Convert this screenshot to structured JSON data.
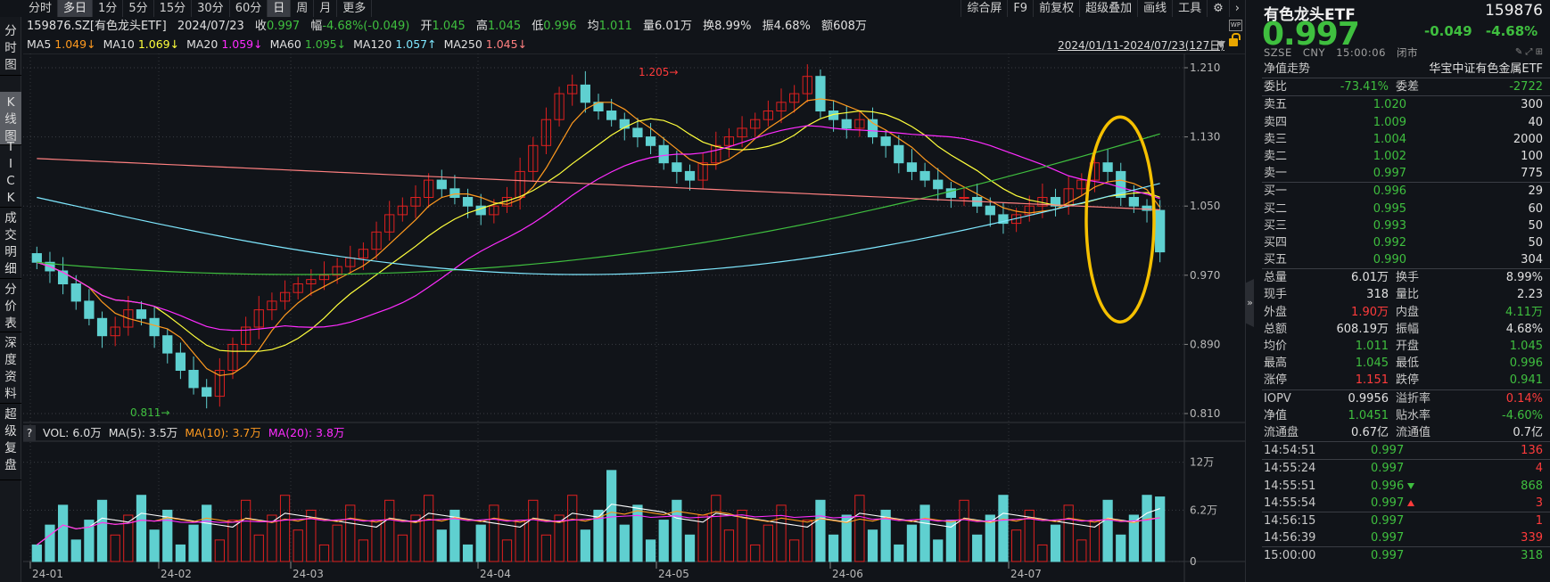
{
  "toolbar": {
    "period_tabs": [
      "分时",
      "多日",
      "1分",
      "5分",
      "15分",
      "30分",
      "60分",
      "日",
      "周",
      "月",
      "更多"
    ],
    "active_tabs": [
      1,
      7
    ],
    "right_tools": [
      "综合屏",
      "F9",
      "前复权",
      "超级叠加",
      "画线",
      "工具",
      "⚙",
      "›"
    ]
  },
  "left_tabs": [
    {
      "label": "分时图",
      "active": false
    },
    {
      "label": "K线图",
      "active": true
    },
    {
      "label": "TICK",
      "active": false
    },
    {
      "label": "成交明细",
      "active": false
    },
    {
      "label": "分价表",
      "active": false
    },
    {
      "label": "深度资料",
      "active": false
    },
    {
      "label": "超级复盘",
      "active": false
    }
  ],
  "info": {
    "symbol": "159876.SZ[有色龙头ETF]",
    "date": "2024/07/23",
    "close_label": "收",
    "close": "0.997",
    "chg_label": "幅",
    "chg": "-4.68%(-0.049)",
    "open_label": "开",
    "open": "1.045",
    "high_label": "高",
    "high": "1.045",
    "low_label": "低",
    "low": "0.996",
    "avg_label": "均",
    "avg": "1.011",
    "vol_label": "量",
    "vol": "6.01万",
    "turn_label": "换",
    "turn": "8.99%",
    "amp_label": "振",
    "amp": "4.68%",
    "amt_label": "额",
    "amt": "608万"
  },
  "ma": [
    {
      "name": "MA5",
      "value": "1.049↓",
      "color": "#ff9a1f"
    },
    {
      "name": "MA10",
      "value": "1.069↓",
      "color": "#ffff3c"
    },
    {
      "name": "MA20",
      "value": "1.059↓",
      "color": "#ff2cff"
    },
    {
      "name": "MA60",
      "value": "1.095↓",
      "color": "#3fbf3f"
    },
    {
      "name": "MA120",
      "value": "1.057↑",
      "color": "#7fe8ff"
    },
    {
      "name": "MA250",
      "value": "1.045↓",
      "color": "#ff8080"
    }
  ],
  "range_text": "2024/01/11-2024/07/23(127日)",
  "price_axis": [
    "1.210",
    "1.130",
    "1.050",
    "0.970",
    "0.890",
    "0.810"
  ],
  "annotations": {
    "high": "1.205",
    "low": "0.811"
  },
  "volume": {
    "help": "?",
    "vol": "VOL: 6.0万",
    "ma5": "MA(5): 3.5万",
    "ma10": "MA(10): 3.7万",
    "ma20": "MA(20): 3.8万",
    "axis": [
      "12万",
      "6.2万",
      "0"
    ]
  },
  "x_axis": [
    "24-01",
    "24-02",
    "24-03",
    "24-04",
    "24-05",
    "24-06",
    "24-07"
  ],
  "chart_data": {
    "type": "candlestick",
    "title": "159876.SZ 有色龙头ETF 日K",
    "ylim": [
      0.81,
      1.21
    ],
    "x_ticks": [
      "24-01",
      "24-02",
      "24-03",
      "24-04",
      "24-05",
      "24-06",
      "24-07"
    ],
    "close_series": [
      0.985,
      0.975,
      0.96,
      0.94,
      0.92,
      0.9,
      0.91,
      0.93,
      0.92,
      0.9,
      0.88,
      0.86,
      0.84,
      0.83,
      0.86,
      0.89,
      0.91,
      0.93,
      0.94,
      0.95,
      0.96,
      0.965,
      0.97,
      0.98,
      0.99,
      1.0,
      1.02,
      1.04,
      1.05,
      1.06,
      1.08,
      1.07,
      1.06,
      1.05,
      1.04,
      1.05,
      1.06,
      1.09,
      1.12,
      1.15,
      1.18,
      1.19,
      1.17,
      1.16,
      1.15,
      1.14,
      1.13,
      1.12,
      1.1,
      1.09,
      1.08,
      1.1,
      1.12,
      1.13,
      1.14,
      1.15,
      1.16,
      1.17,
      1.18,
      1.2,
      1.16,
      1.15,
      1.14,
      1.15,
      1.13,
      1.12,
      1.1,
      1.09,
      1.08,
      1.07,
      1.06,
      1.06,
      1.05,
      1.04,
      1.03,
      1.04,
      1.05,
      1.06,
      1.05,
      1.07,
      1.08,
      1.1,
      1.09,
      1.06,
      1.05,
      1.045,
      0.997
    ]
  },
  "right_panel": {
    "name": "有色龙头ETF",
    "code": "159876",
    "price": "0.997",
    "change": "-0.049",
    "change_pct": "-4.68%",
    "meta": [
      "SZSE",
      "CNY",
      "15:00:06",
      "闭市"
    ],
    "nav_trend": "净值走势",
    "index_name": "华宝中证有色金属ETF",
    "weibi": {
      "l1": "委比",
      "v1": "-73.41%",
      "l2": "委差",
      "v2": "-2722"
    },
    "asks": [
      {
        "label": "卖五",
        "price": "1.020",
        "vol": "300"
      },
      {
        "label": "卖四",
        "price": "1.009",
        "vol": "40"
      },
      {
        "label": "卖三",
        "price": "1.004",
        "vol": "2000"
      },
      {
        "label": "卖二",
        "price": "1.002",
        "vol": "100"
      },
      {
        "label": "卖一",
        "price": "0.997",
        "vol": "775"
      }
    ],
    "bids": [
      {
        "label": "买一",
        "price": "0.996",
        "vol": "29"
      },
      {
        "label": "买二",
        "price": "0.995",
        "vol": "60"
      },
      {
        "label": "买三",
        "price": "0.993",
        "vol": "50"
      },
      {
        "label": "买四",
        "price": "0.992",
        "vol": "50"
      },
      {
        "label": "买五",
        "price": "0.990",
        "vol": "304"
      }
    ],
    "stats": [
      {
        "l1": "总量",
        "v1": "6.01万",
        "c1": "w",
        "l2": "换手",
        "v2": "8.99%",
        "c2": "w"
      },
      {
        "l1": "现手",
        "v1": "318",
        "c1": "w",
        "l2": "量比",
        "v2": "2.23",
        "c2": "w"
      },
      {
        "l1": "外盘",
        "v1": "1.90万",
        "c1": "r",
        "l2": "内盘",
        "v2": "4.11万",
        "c2": "g"
      },
      {
        "l1": "总额",
        "v1": "608.19万",
        "c1": "w",
        "l2": "振幅",
        "v2": "4.68%",
        "c2": "w"
      },
      {
        "l1": "均价",
        "v1": "1.011",
        "c1": "g",
        "l2": "开盘",
        "v2": "1.045",
        "c2": "g"
      },
      {
        "l1": "最高",
        "v1": "1.045",
        "c1": "g",
        "l2": "最低",
        "v2": "0.996",
        "c2": "g"
      },
      {
        "l1": "涨停",
        "v1": "1.151",
        "c1": "r",
        "l2": "跌停",
        "v2": "0.941",
        "c2": "g"
      }
    ],
    "nav_stats": [
      {
        "l1": "IOPV",
        "v1": "0.9956",
        "c1": "w",
        "l2": "溢折率",
        "v2": "0.14%",
        "c2": "r"
      },
      {
        "l1": "净值",
        "v1": "1.0451",
        "c1": "g",
        "l2": "贴水率",
        "v2": "-4.60%",
        "c2": "g"
      },
      {
        "l1": "流通盘",
        "v1": "0.67亿",
        "c1": "w",
        "l2": "流通值",
        "v2": "0.7亿",
        "c2": "w"
      }
    ],
    "ticks": [
      {
        "time": "14:54:51",
        "price": "0.997",
        "vol": "136",
        "vc": "r",
        "arrow": ""
      },
      {
        "time": "14:55:24",
        "price": "0.997",
        "vol": "4",
        "vc": "r",
        "arrow": ""
      },
      {
        "time": "14:55:51",
        "price": "0.996",
        "vol": "868",
        "vc": "g",
        "arrow": "down"
      },
      {
        "time": "14:55:54",
        "price": "0.997",
        "vol": "3",
        "vc": "r",
        "arrow": "up"
      },
      {
        "time": "14:56:15",
        "price": "0.997",
        "vol": "1",
        "vc": "r",
        "arrow": ""
      },
      {
        "time": "14:56:39",
        "price": "0.997",
        "vol": "339",
        "vc": "r",
        "arrow": ""
      },
      {
        "time": "15:00:00",
        "price": "0.997",
        "vol": "318",
        "vc": "g",
        "arrow": ""
      }
    ]
  }
}
